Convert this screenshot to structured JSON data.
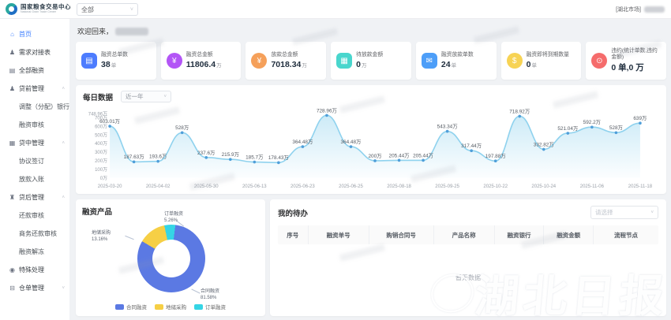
{
  "header": {
    "org_name": "国家粮食交易中心",
    "org_name_en": "National Grain Trade Center",
    "market_filter": "全部",
    "region_tag": "[湖北市场]"
  },
  "sidebar": {
    "items": [
      {
        "label": "首页",
        "icon": "home",
        "type": "leaf",
        "active": true
      },
      {
        "label": "需求对接表",
        "icon": "user",
        "type": "leaf"
      },
      {
        "label": "全部融资",
        "icon": "doc",
        "type": "leaf"
      },
      {
        "label": "贷前管理",
        "icon": "user",
        "type": "parent",
        "caret": "up"
      },
      {
        "label": "调整（分配）银行",
        "type": "child"
      },
      {
        "label": "融资审核",
        "type": "child"
      },
      {
        "label": "贷中管理",
        "icon": "grid",
        "type": "parent",
        "caret": "up"
      },
      {
        "label": "协议签订",
        "type": "child"
      },
      {
        "label": "放款入账",
        "type": "child"
      },
      {
        "label": "贷后管理",
        "icon": "bank",
        "type": "parent",
        "caret": "up"
      },
      {
        "label": "还款审核",
        "type": "child"
      },
      {
        "label": "商务还款审核",
        "type": "child"
      },
      {
        "label": "融资解冻",
        "type": "child"
      },
      {
        "label": "特殊处理",
        "icon": "pin",
        "type": "leaf"
      },
      {
        "label": "仓单管理",
        "icon": "folder",
        "type": "parent",
        "caret": "down"
      }
    ]
  },
  "welcome": {
    "prefix": "欢迎回来，"
  },
  "stats": [
    {
      "label": "融资总单数",
      "value": "38",
      "unit": "单",
      "color": "#4d7cfe",
      "icon": "file"
    },
    {
      "label": "融资总金额",
      "value": "11806.4",
      "unit": "万",
      "color": "#b355f6",
      "icon": "money"
    },
    {
      "label": "放款总金额",
      "value": "7018.34",
      "unit": "万",
      "color": "#f5a05a",
      "icon": "coin"
    },
    {
      "label": "待放款金额",
      "value": "0",
      "unit": "万",
      "color": "#49d6cd",
      "icon": "wallet"
    },
    {
      "label": "融资放款单数",
      "value": "24",
      "unit": "单",
      "color": "#4d9ef8",
      "icon": "send"
    },
    {
      "label": "融资即将到期数量",
      "value": "0",
      "unit": "单",
      "color": "#f7d354",
      "icon": "due"
    },
    {
      "label": "违约(统计单数,违约金额)",
      "value": "0 单,0 万",
      "unit": "",
      "color": "#f56c6c",
      "icon": "clock"
    }
  ],
  "chart_data": [
    {
      "type": "line",
      "title": "每日数据",
      "range_selector": "近一年",
      "unit": "万",
      "ylim": [
        0,
        748.96
      ],
      "y_ticks": [
        "748.96万",
        "700万",
        "600万",
        "500万",
        "400万",
        "300万",
        "200万",
        "100万",
        "0万"
      ],
      "y_tick_values": [
        748.96,
        700,
        600,
        500,
        400,
        300,
        200,
        100,
        0
      ],
      "x_tick_labels": [
        "2025-03-20",
        "2025-04-02",
        "2025-05-30",
        "2025-06-13",
        "2025-06-23",
        "2025-06-25",
        "2025-08-18",
        "2025-09-25",
        "2025-10-22",
        "2025-10-24",
        "2025-11-06",
        "2025-11-18"
      ],
      "values": [
        603.01,
        187.63,
        193.6,
        528,
        237.6,
        215.9,
        185.7,
        178.43,
        364.48,
        728.96,
        364.48,
        200,
        205.44,
        205.44,
        543.34,
        317.44,
        197.88,
        718.92,
        332.82,
        521.04,
        592.2,
        528,
        639
      ],
      "point_labels": [
        "603.01万",
        "187.63万",
        "193.6万",
        "528万",
        "237.6万",
        "215.9万",
        "185.7万",
        "178.43万",
        "364.48万",
        "728.96万",
        "364.48万",
        "200万",
        "205.44万",
        "205.44万",
        "543.34万",
        "317.44万",
        "197.88万",
        "718.92万",
        "332.82万",
        "521.04万",
        "592.2万",
        "528万",
        "639万"
      ],
      "line_color": "#8fd2ee",
      "point_color": "#4f9ed9",
      "grid": false,
      "legend": "none"
    },
    {
      "type": "pie",
      "title": "融资产品",
      "donut": true,
      "legend_position": "bottom",
      "slices": [
        {
          "name": "合同融资",
          "pct": 81.58,
          "pct_label": "81.58%",
          "color": "#5b79e3"
        },
        {
          "name": "地储采购",
          "pct": 13.16,
          "pct_label": "13.16%",
          "color": "#f6cf45"
        },
        {
          "name": "订单融资",
          "pct": 5.26,
          "pct_label": "5.26%",
          "color": "#35d5e5"
        }
      ]
    }
  ],
  "todo": {
    "title": "我的待办",
    "select_placeholder": "请选择",
    "columns": [
      "序号",
      "融资单号",
      "购销合同号",
      "产品名称",
      "融资银行",
      "融资金额",
      "流程节点"
    ],
    "empty_text": "暂无数据"
  },
  "watermark": {
    "text": "湖北日报"
  }
}
